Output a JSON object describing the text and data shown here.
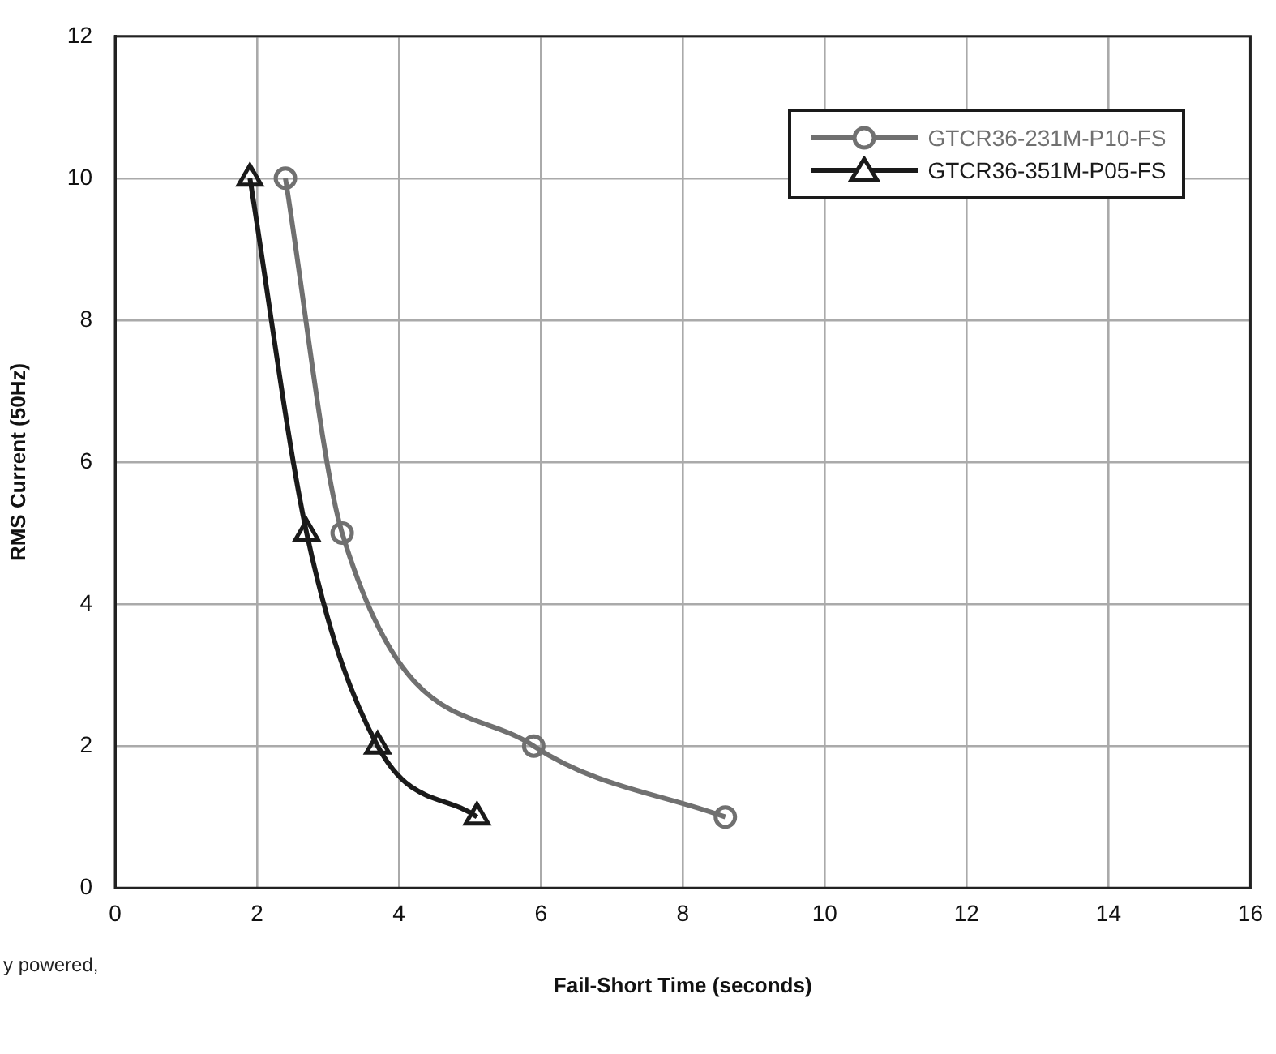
{
  "chart_data": {
    "type": "line",
    "xlabel": "Fail-Short Time (seconds)",
    "ylabel": "RMS Current (50Hz)",
    "xlim": [
      0,
      16
    ],
    "xticks": [
      0,
      2,
      4,
      6,
      8,
      10,
      12,
      14,
      16
    ],
    "ylim": [
      0,
      12
    ],
    "yticks": [
      0,
      2,
      4,
      6,
      8,
      10,
      12
    ],
    "grid": true,
    "legend": "top right",
    "line_style": "solid",
    "series": [
      {
        "name": "GTCR36-231M-P10-FS",
        "color": "#707070",
        "marker": "circle",
        "x": [
          2.4,
          3.2,
          5.9,
          8.6
        ],
        "values": [
          10,
          5,
          2,
          1
        ]
      },
      {
        "name": "GTCR36-351M-P05-FS",
        "color": "#1a1a1a",
        "marker": "triangle",
        "x": [
          1.9,
          2.7,
          3.7,
          5.1
        ],
        "values": [
          10,
          5,
          2,
          1
        ]
      }
    ],
    "annotations": [
      "y powered,"
    ]
  }
}
